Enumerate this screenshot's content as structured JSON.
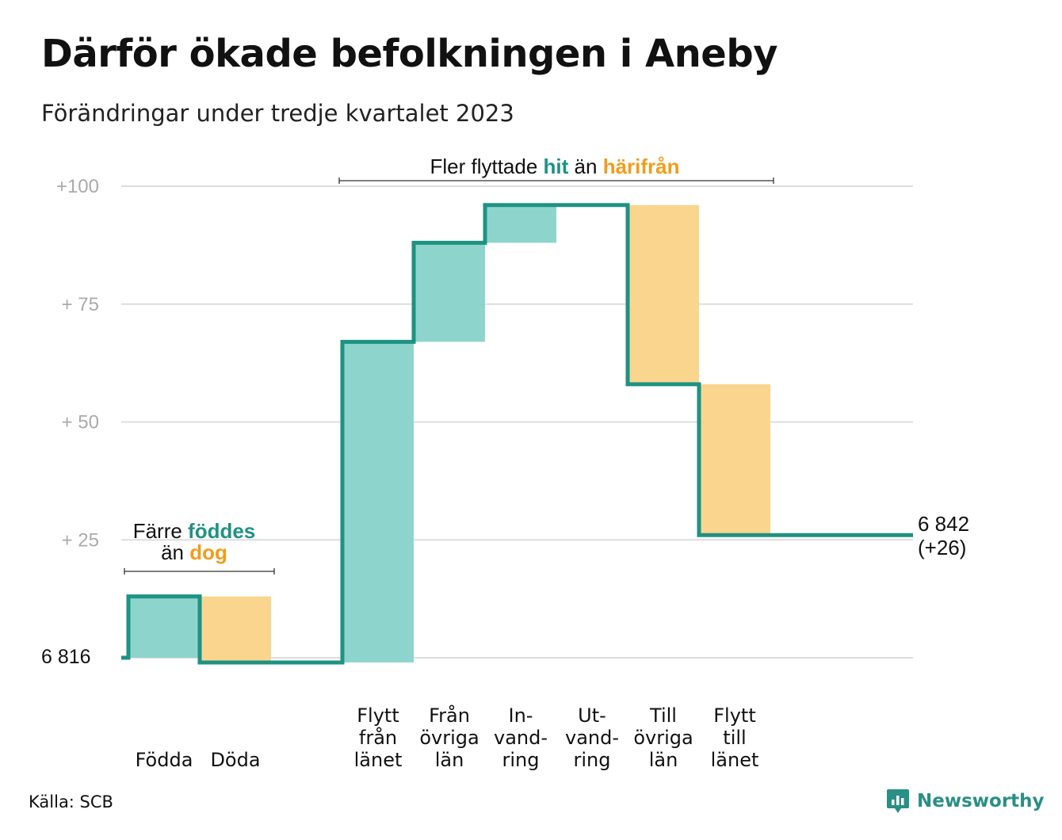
{
  "title": "Därför ökade befolkningen i Aneby",
  "subtitle": "Förändringar under tredje kvartalet 2023",
  "source": "Källa: SCB",
  "brand": "Newsworthy",
  "colors": {
    "positive_fill": "#8dd5cc",
    "negative_fill": "#fad58d",
    "step_line": "#1e9283",
    "grid": "#dddddd",
    "highlight_teal": "#1e9283",
    "highlight_orange": "#f29c1b"
  },
  "annotations": {
    "births": {
      "line1_pre": "Färre ",
      "line1_hl": "föddes",
      "line2_pre": "än ",
      "line2_hl": "dog"
    },
    "migration": {
      "pre": "Fler flyttade ",
      "hl1": "hit",
      "mid": " än ",
      "hl2": "härifrån"
    }
  },
  "chart_data": {
    "type": "waterfall",
    "start_label": "6  816",
    "end_label_line1": "6 842",
    "end_label_line2": "(+26)",
    "start_value": 0,
    "end_value": 26,
    "y_ticks": [
      {
        "value": 25,
        "label": "+  25"
      },
      {
        "value": 50,
        "label": "+  50"
      },
      {
        "value": 75,
        "label": "+  75"
      },
      {
        "value": 100,
        "label": "+100"
      }
    ],
    "ylim": [
      0,
      100
    ],
    "grid": true,
    "steps": [
      {
        "label": [
          "Födda"
        ],
        "delta": 13,
        "kind": "positive"
      },
      {
        "label": [
          "Döda"
        ],
        "delta": -14,
        "kind": "negative"
      },
      {
        "label": [],
        "delta": 0,
        "kind": "gap"
      },
      {
        "label": [
          "Flytt",
          "från",
          "länet"
        ],
        "delta": 68,
        "kind": "positive"
      },
      {
        "label": [
          "Från",
          "övriga",
          "län"
        ],
        "delta": 21,
        "kind": "positive"
      },
      {
        "label": [
          "In-",
          "vand-",
          "ring"
        ],
        "delta": 8,
        "kind": "positive"
      },
      {
        "label": [
          "Ut-",
          "vand-",
          "ring"
        ],
        "delta": 0,
        "kind": "negative"
      },
      {
        "label": [
          "Till",
          "övriga",
          "län"
        ],
        "delta": -38,
        "kind": "negative"
      },
      {
        "label": [
          "Flytt",
          "till",
          "länet"
        ],
        "delta": -32,
        "kind": "negative"
      }
    ]
  }
}
